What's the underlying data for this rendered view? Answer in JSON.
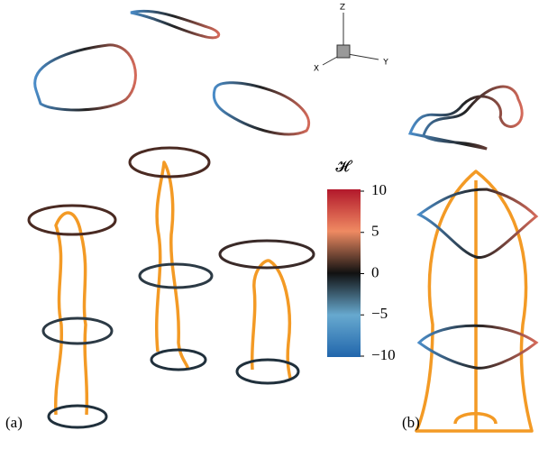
{
  "panels": {
    "left_label": "(a)",
    "right_label": "(b)"
  },
  "axes_triad": {
    "z": "Z",
    "x": "X",
    "y": "Y"
  },
  "colorbar": {
    "title": "𝓗",
    "lim": [
      -10,
      10
    ],
    "ticks": [
      10,
      5,
      0,
      {
        "value": -5,
        "label": "−5"
      },
      {
        "value": -10,
        "label": "−10"
      }
    ]
  }
}
